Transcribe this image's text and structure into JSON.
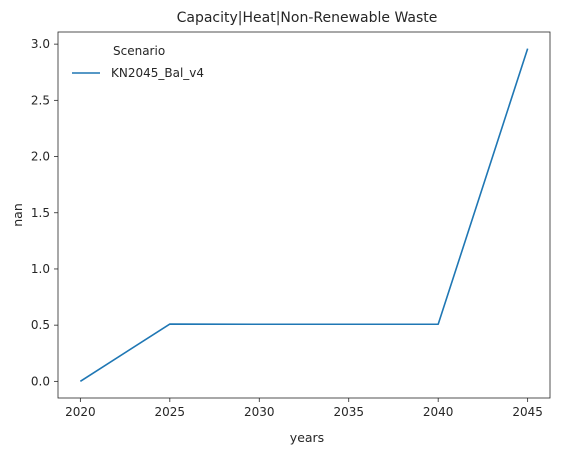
{
  "chart_data": {
    "type": "line",
    "title": "Capacity|Heat|Non-Renewable Waste",
    "xlabel": "years",
    "ylabel": "nan",
    "x": [
      2020,
      2025,
      2030,
      2035,
      2040,
      2045
    ],
    "xticks": [
      "2020",
      "2025",
      "2030",
      "2035",
      "2040",
      "2045"
    ],
    "yticks": [
      "0.0",
      "0.5",
      "1.0",
      "1.5",
      "2.0",
      "2.5",
      "3.0"
    ],
    "xlim": [
      2018.75,
      2046.25
    ],
    "ylim": [
      -0.148,
      3.108
    ],
    "legend": {
      "title": "Scenario",
      "placement": "top-left"
    },
    "series": [
      {
        "name": "KN2045_Bal_v4",
        "color": "#1f77b4",
        "values": [
          0.0,
          0.51,
          0.508,
          0.508,
          0.508,
          2.96
        ]
      }
    ],
    "grid": false
  }
}
